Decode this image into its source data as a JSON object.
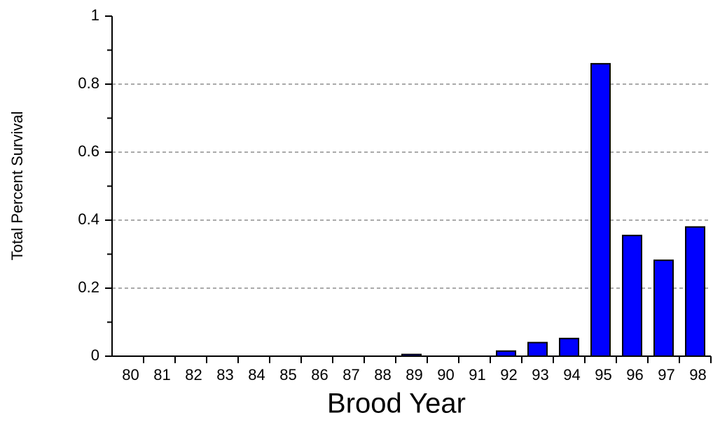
{
  "chart_data": {
    "type": "bar",
    "xlabel": "Brood Year",
    "ylabel": "Total Percent Survival",
    "categories": [
      "80",
      "81",
      "82",
      "83",
      "84",
      "85",
      "86",
      "87",
      "88",
      "89",
      "90",
      "91",
      "92",
      "93",
      "94",
      "95",
      "96",
      "97",
      "98"
    ],
    "values": [
      0,
      0,
      0,
      0,
      0,
      0,
      0,
      0,
      0,
      0.005,
      0,
      0,
      0.015,
      0.04,
      0.052,
      0.86,
      0.355,
      0.282,
      0.38
    ],
    "color": "#0000ff",
    "ylim": [
      0,
      1
    ],
    "yticks": [
      0,
      0.2,
      0.4,
      0.6,
      0.8,
      1
    ],
    "grid": true
  }
}
